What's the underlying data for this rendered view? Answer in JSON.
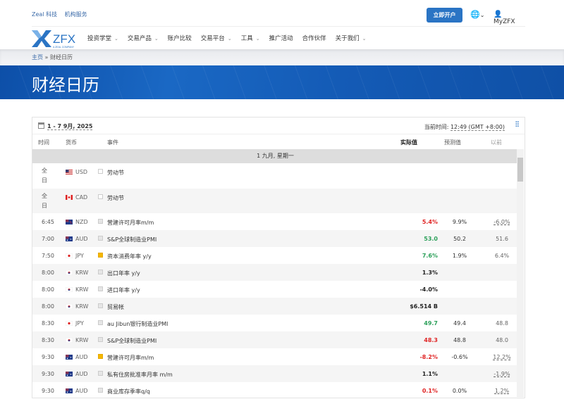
{
  "topbar": {
    "links": [
      "Zeal 科技",
      "机构服务"
    ],
    "open_account": "立即开户",
    "language_icon": "globe-icon",
    "user": "MyZFX"
  },
  "logo": {
    "text": "ZFX",
    "tagline": "A ZEAL COMPANY"
  },
  "nav": [
    "投资学堂",
    "交易产品",
    "账户比较",
    "交易平台",
    "工具",
    "推广活动",
    "合作伙伴",
    "关于我们"
  ],
  "nav_dropdown": [
    true,
    true,
    false,
    true,
    true,
    false,
    false,
    true
  ],
  "breadcrumb": {
    "home": "主页",
    "sep": "»",
    "current": "财经日历"
  },
  "hero_title": "财经日历",
  "calendar": {
    "date_range": "1 - 7 9月, 2025",
    "current_time_label": "当前时间:",
    "current_time": "12:49 (GMT +8:00)",
    "columns": {
      "time": "时间",
      "currency": "货币",
      "event": "事件",
      "actual": "实际值",
      "forecast": "预测值",
      "previous": "以前"
    },
    "day_header": "1 九月, 星期一",
    "colors": {
      "red": "#e02424",
      "green": "#2ca05a",
      "medium_impact": "#f5b800"
    },
    "rows": [
      {
        "time": "全日",
        "currency": "USD",
        "impact": "none",
        "event": "劳动节",
        "actual": "",
        "actual_color": "",
        "forecast": "",
        "previous": ""
      },
      {
        "time": "全日",
        "currency": "CAD",
        "impact": "none",
        "event": "劳动节",
        "actual": "",
        "actual_color": "",
        "forecast": "",
        "previous": ""
      },
      {
        "time": "6:45",
        "currency": "NZD",
        "impact": "low",
        "event": "营建许可月率m/m",
        "actual": "5.4%",
        "actual_color": "red",
        "forecast": "9.9%",
        "previous": "-6.0%",
        "previous_revised": true
      },
      {
        "time": "7:00",
        "currency": "AUD",
        "impact": "low",
        "event": "S&P全球制造业PMI",
        "actual": "53.0",
        "actual_color": "green",
        "forecast": "50.2",
        "previous": "51.6"
      },
      {
        "time": "7:50",
        "currency": "JPY",
        "impact": "medium",
        "event": "资本消费年率 y/y",
        "actual": "7.6%",
        "actual_color": "green",
        "forecast": "1.9%",
        "previous": "6.4%"
      },
      {
        "time": "8:00",
        "currency": "KRW",
        "impact": "low",
        "event": "出口年率 y/y",
        "actual": "1.3%",
        "actual_color": "black",
        "forecast": "",
        "previous": ""
      },
      {
        "time": "8:00",
        "currency": "KRW",
        "impact": "low",
        "event": "进口年率 y/y",
        "actual": "-4.0%",
        "actual_color": "black",
        "forecast": "",
        "previous": ""
      },
      {
        "time": "8:00",
        "currency": "KRW",
        "impact": "low",
        "event": "贸易帐",
        "actual": "$6.514 B",
        "actual_color": "black",
        "forecast": "",
        "previous": ""
      },
      {
        "time": "8:30",
        "currency": "JPY",
        "impact": "low",
        "event": "au Jibun银行制造业PMI",
        "actual": "49.7",
        "actual_color": "green",
        "forecast": "49.4",
        "previous": "48.8"
      },
      {
        "time": "8:30",
        "currency": "KRW",
        "impact": "low",
        "event": "S&P全球制造业PMI",
        "actual": "48.3",
        "actual_color": "red",
        "forecast": "48.8",
        "previous": "48.0"
      },
      {
        "time": "9:30",
        "currency": "AUD",
        "impact": "medium",
        "event": "营建许可月率m/m",
        "actual": "-8.2%",
        "actual_color": "red",
        "forecast": "-0.6%",
        "previous": "12.2%",
        "previous_revised": true
      },
      {
        "time": "9:30",
        "currency": "AUD",
        "impact": "low",
        "event": "私有住房批准率月率 m/m",
        "actual": "1.1%",
        "actual_color": "black",
        "forecast": "",
        "previous": "-1.9%",
        "previous_revised": true
      },
      {
        "time": "9:30",
        "currency": "AUD",
        "impact": "low",
        "event": "商业库存季率q/q",
        "actual": "0.1%",
        "actual_color": "red",
        "forecast": "0.0%",
        "previous": "1.2%",
        "previous_revised": true
      }
    ]
  }
}
